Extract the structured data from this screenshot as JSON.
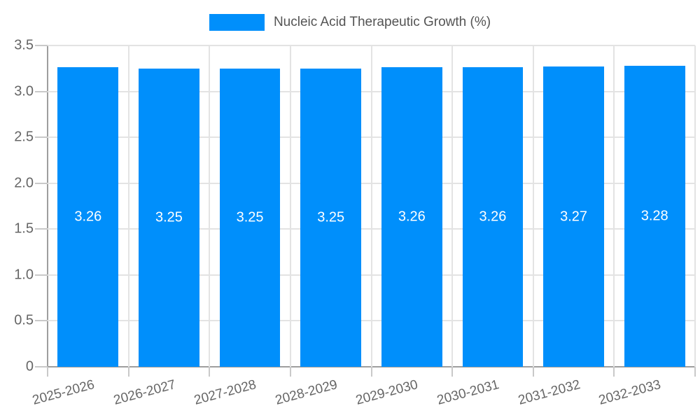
{
  "legend": {
    "label": "Nucleic Acid Therapeutic Growth (%)"
  },
  "chart_data": {
    "type": "bar",
    "title": "",
    "categories": [
      "2025-2026",
      "2026-2027",
      "2027-2028",
      "2028-2029",
      "2029-2030",
      "2030-2031",
      "2031-2032",
      "2032-2033"
    ],
    "series": [
      {
        "name": "Nucleic Acid Therapeutic Growth (%)",
        "values": [
          3.26,
          3.25,
          3.25,
          3.25,
          3.26,
          3.26,
          3.27,
          3.28
        ]
      }
    ],
    "value_labels": [
      "3.26",
      "3.25",
      "3.25",
      "3.25",
      "3.26",
      "3.26",
      "3.27",
      "3.28"
    ],
    "xlabel": "",
    "ylabel": "",
    "ylim": [
      0,
      3.5
    ],
    "ytick_labels": [
      "0",
      "0.5",
      "1.0",
      "1.5",
      "2.0",
      "2.5",
      "3.0",
      "3.5"
    ],
    "grid": true,
    "legend_position": "top-center"
  },
  "colors": {
    "bar": "#008FFB",
    "grid": "#E3E3E3",
    "tick": "#C9C9C9",
    "axis": "#9E9E9E",
    "tick_text": "#666666",
    "legend_text": "#545454",
    "value_text": "#FFFFFF",
    "background": "#FFFFFF"
  }
}
